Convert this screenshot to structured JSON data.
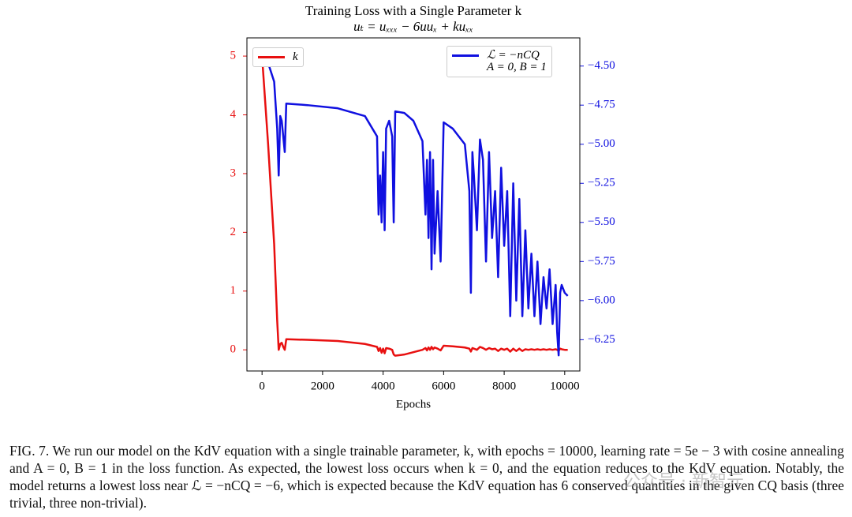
{
  "chart_data": {
    "type": "line",
    "title": "Training Loss with a Single Parameter k",
    "subtitle": "uₜ = uₓₓₓ − 6uuₓ + kuₓₓ",
    "x_label": "Epochs",
    "x": [
      0,
      200,
      400,
      500,
      550,
      600,
      650,
      700,
      750,
      800,
      1500,
      2500,
      3400,
      3800,
      3850,
      3900,
      3950,
      4000,
      4050,
      4100,
      4200,
      4300,
      4350,
      4400,
      4700,
      5000,
      5300,
      5400,
      5450,
      5500,
      5550,
      5600,
      5650,
      5700,
      5800,
      5900,
      6000,
      6300,
      6700,
      6850,
      6900,
      6950,
      7000,
      7100,
      7200,
      7300,
      7400,
      7500,
      7600,
      7700,
      7800,
      7900,
      8000,
      8100,
      8200,
      8300,
      8400,
      8500,
      8600,
      8700,
      8800,
      8900,
      9000,
      9100,
      9200,
      9300,
      9400,
      9500,
      9600,
      9700,
      9750,
      9800,
      9850,
      9900,
      10000,
      10100
    ],
    "series": [
      {
        "name": "k",
        "color": "#e81010",
        "axis": "y",
        "values": [
          5,
          3.5,
          1.8,
          0.5,
          0,
          0.1,
          0.12,
          0.05,
          0,
          0.18,
          0.17,
          0.15,
          0.1,
          0.05,
          -0.02,
          0.03,
          -0.05,
          0.02,
          -0.06,
          0.03,
          0.02,
          0,
          -0.08,
          -0.1,
          -0.08,
          -0.04,
          0,
          0.03,
          -0.01,
          0.04,
          0,
          0.05,
          0.01,
          0.04,
          0.02,
          -0.01,
          0.07,
          0.06,
          0.04,
          0.02,
          -0.03,
          0.03,
          0.02,
          0,
          0.05,
          0.03,
          0,
          0.03,
          0.01,
          0.02,
          -0.02,
          0.02,
          0,
          0.02,
          -0.03,
          0.02,
          -0.02,
          0.02,
          -0.02,
          0.01,
          0,
          0.01,
          0,
          0.01,
          0,
          0.01,
          0,
          0.01,
          0,
          0.01,
          0,
          -0.02,
          0.02,
          0.01,
          0,
          0
        ]
      },
      {
        "name": "ℒ = −nCQ\nA = 0, B = 1",
        "color": "#1010e0",
        "axis": "y2",
        "values": [
          -4.43,
          -4.48,
          -4.6,
          -4.9,
          -5.2,
          -4.82,
          -4.85,
          -4.95,
          -5.05,
          -4.74,
          -4.75,
          -4.77,
          -4.82,
          -4.95,
          -5.45,
          -5.2,
          -5.5,
          -5.05,
          -5.55,
          -4.9,
          -4.85,
          -4.95,
          -5.5,
          -4.79,
          -4.8,
          -4.85,
          -4.98,
          -5.45,
          -5.1,
          -5.6,
          -5.05,
          -5.8,
          -5.1,
          -5.7,
          -5.3,
          -5.75,
          -4.86,
          -4.9,
          -5.0,
          -5.3,
          -5.95,
          -5.05,
          -5.2,
          -5.55,
          -4.97,
          -5.1,
          -5.75,
          -5.05,
          -5.6,
          -5.3,
          -5.85,
          -5.15,
          -5.65,
          -5.3,
          -6.1,
          -5.25,
          -6.0,
          -5.35,
          -6.1,
          -5.55,
          -6.05,
          -5.7,
          -6.1,
          -5.75,
          -6.15,
          -5.85,
          -6.05,
          -5.8,
          -6.15,
          -5.9,
          -6.2,
          -6.35,
          -5.95,
          -5.9,
          -5.95,
          -5.97
        ]
      }
    ],
    "xlim": [
      -500,
      10500
    ],
    "xticks": [
      0,
      2000,
      4000,
      6000,
      8000,
      10000
    ],
    "ylim": [
      -0.36,
      5.31
    ],
    "yticks": [
      0,
      1,
      2,
      3,
      4,
      5
    ],
    "y2lim": [
      -6.45,
      -4.32
    ],
    "y2ticks": [
      {
        "value": -6.25,
        "label": "−6.25"
      },
      {
        "value": -6.0,
        "label": "−6.00"
      },
      {
        "value": -5.75,
        "label": "−5.75"
      },
      {
        "value": -5.5,
        "label": "−5.50"
      },
      {
        "value": -5.25,
        "label": "−5.25"
      },
      {
        "value": -5.0,
        "label": "−5.00"
      },
      {
        "value": -4.75,
        "label": "−4.75"
      },
      {
        "value": -4.5,
        "label": "−4.50"
      }
    ],
    "grid": false
  },
  "caption": "FIG. 7. We run our model on the KdV equation with a single trainable parameter, k, with epochs = 10000, learning rate = 5e − 3 with cosine annealing and A = 0, B = 1 in the loss function. As expected, the lowest loss occurs when k = 0, and the equation reduces to the KdV equation. Notably, the model returns a lowest loss near ℒ = −nCQ = −6, which is expected because the KdV equation has 6 conserved quantities in the given CQ basis (three trivial, three non-trivial).",
  "watermark": "公众号 · 新智元"
}
